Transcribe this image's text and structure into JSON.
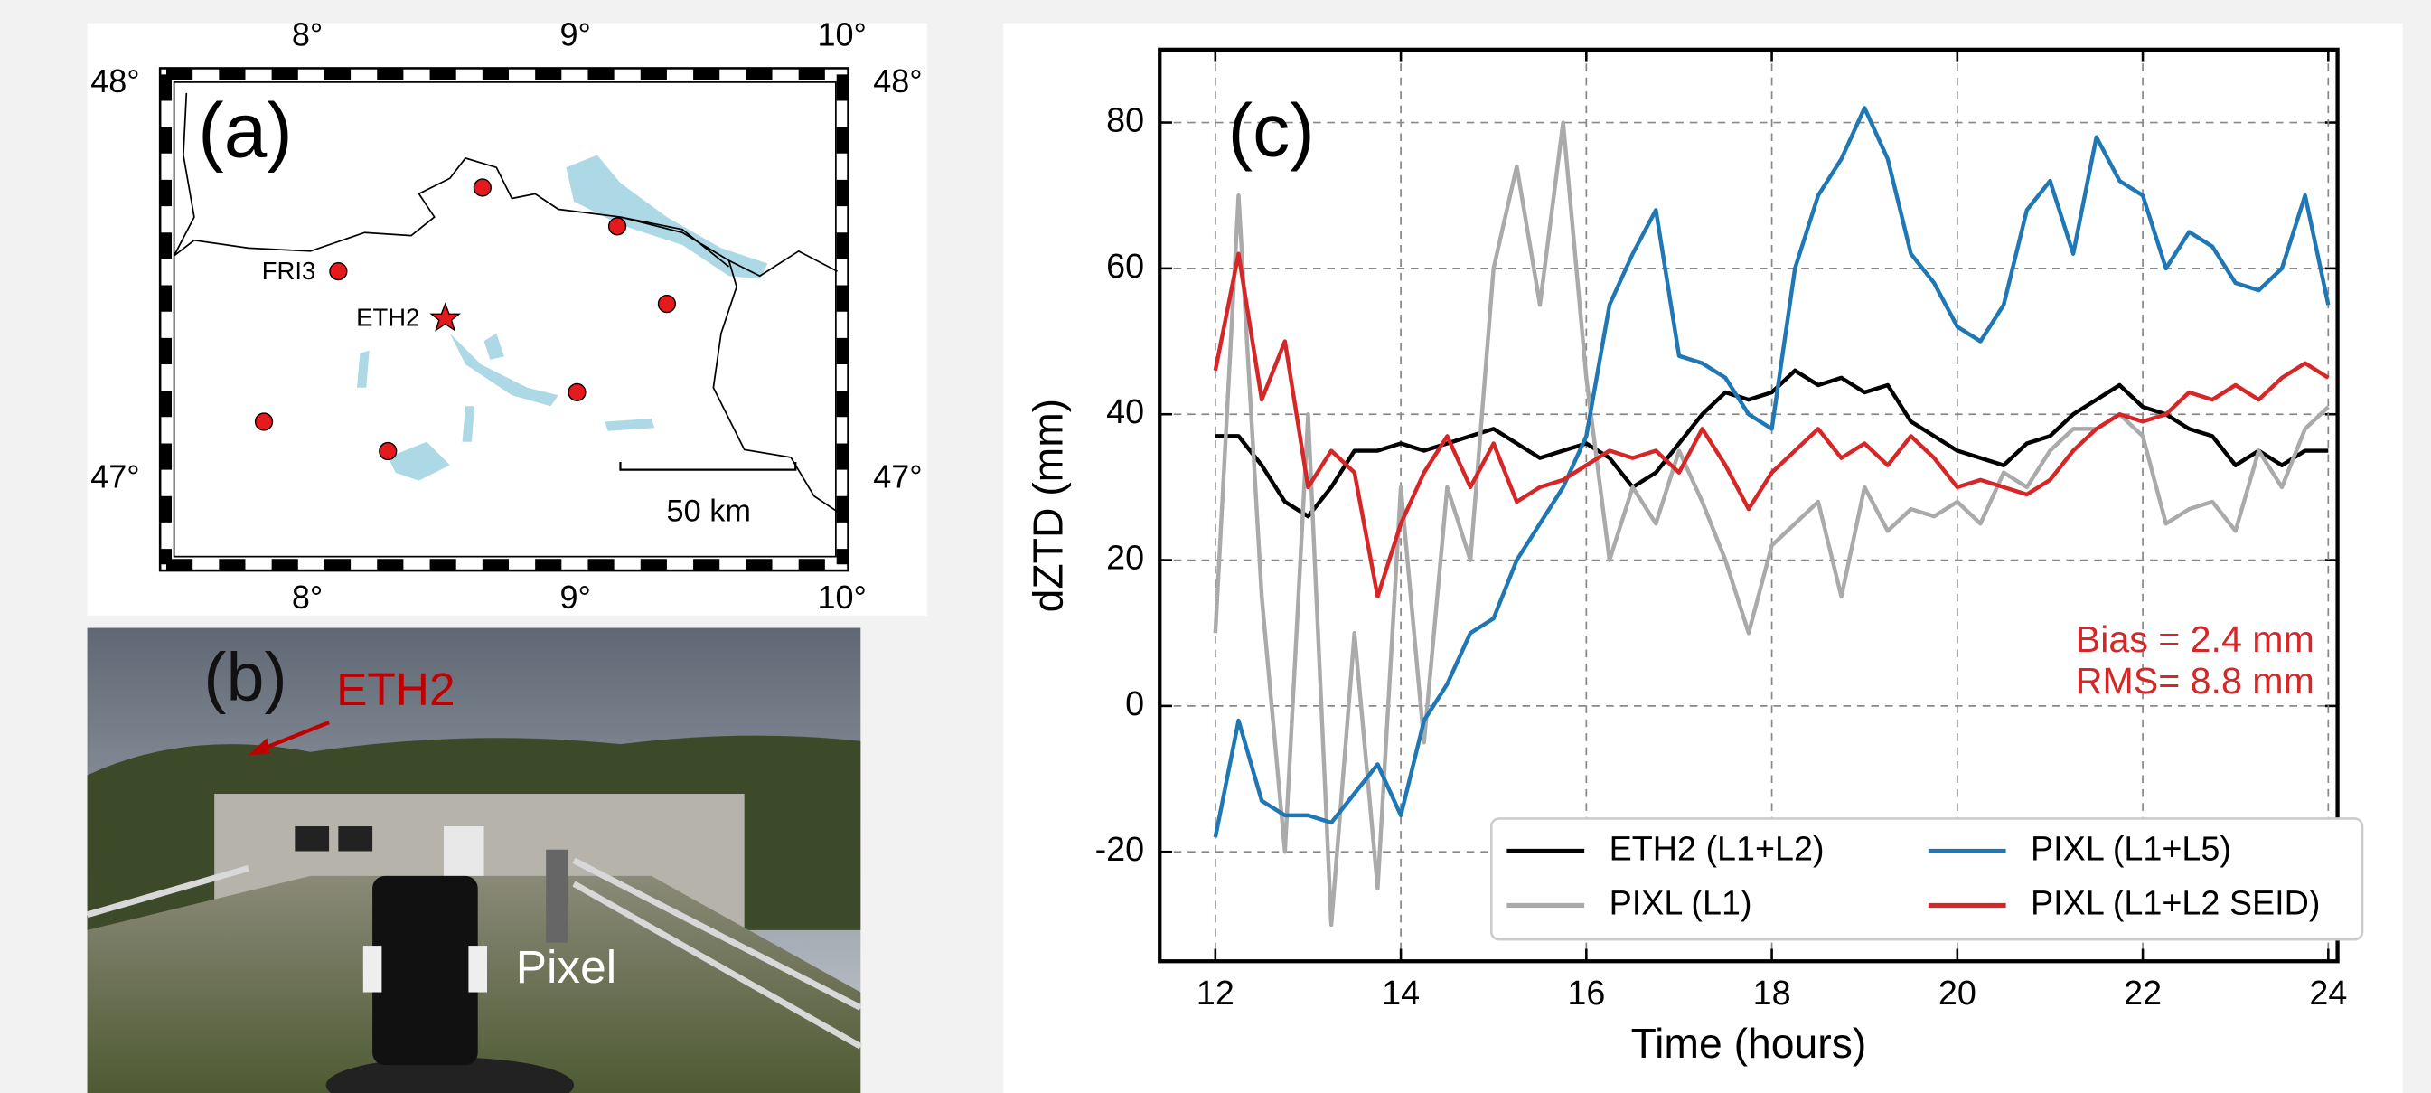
{
  "panel_a": {
    "label": "(a)",
    "lon_labels": [
      "8°",
      "9°",
      "10°"
    ],
    "lat_labels": [
      "48°",
      "47°"
    ],
    "stations": [
      "FRI3",
      "ETH2"
    ],
    "scale": "50 km"
  },
  "panel_b": {
    "label": "(b)",
    "eth2": "ETH2",
    "pixel": "Pixel"
  },
  "chart_data": {
    "type": "line",
    "label": "(c)",
    "xlabel": "Time (hours)",
    "ylabel": "dZTD (mm)",
    "annotations": [
      "Bias = 2.4 mm",
      "RMS= 8.8 mm"
    ],
    "annotation_color": "#d62728",
    "xlim": [
      11.4,
      24.1
    ],
    "ylim": [
      -35,
      90
    ],
    "xticks": [
      12,
      14,
      16,
      18,
      20,
      22,
      24
    ],
    "yticks": [
      -20,
      0,
      20,
      40,
      60,
      80
    ],
    "grid": true,
    "x": [
      12,
      12.25,
      12.5,
      12.75,
      13,
      13.25,
      13.5,
      13.75,
      14,
      14.25,
      14.5,
      14.75,
      15,
      15.25,
      15.5,
      15.75,
      16,
      16.25,
      16.5,
      16.75,
      17,
      17.25,
      17.5,
      17.75,
      18,
      18.25,
      18.5,
      18.75,
      19,
      19.25,
      19.5,
      19.75,
      20,
      20.25,
      20.5,
      20.75,
      21,
      21.25,
      21.5,
      21.75,
      22,
      22.25,
      22.5,
      22.75,
      23,
      23.25,
      23.5,
      23.75,
      24
    ],
    "series": [
      {
        "name": "ETH2 (L1+L2)",
        "color": "#000000",
        "values": [
          37,
          37,
          33,
          28,
          26,
          30,
          35,
          35,
          36,
          35,
          36,
          37,
          38,
          36,
          34,
          35,
          36,
          34,
          30,
          32,
          36,
          40,
          43,
          42,
          43,
          46,
          44,
          45,
          43,
          44,
          39,
          37,
          35,
          34,
          33,
          36,
          37,
          40,
          42,
          44,
          41,
          40,
          38,
          37,
          33,
          35,
          33,
          35,
          35
        ]
      },
      {
        "name": "PIXL (L1)",
        "color": "#aaaaaa",
        "values": [
          10,
          70,
          15,
          -20,
          40,
          -30,
          10,
          -25,
          30,
          -5,
          30,
          20,
          60,
          74,
          55,
          80,
          45,
          20,
          30,
          25,
          35,
          28,
          20,
          10,
          22,
          25,
          28,
          15,
          30,
          24,
          27,
          26,
          28,
          25,
          32,
          30,
          35,
          38,
          38,
          40,
          37,
          25,
          27,
          28,
          24,
          35,
          30,
          38,
          41
        ]
      },
      {
        "name": "PIXL (L1+L5)",
        "color": "#1f77b4",
        "values": [
          -18,
          -2,
          -13,
          -15,
          -15,
          -16,
          -12,
          -8,
          -15,
          -2,
          3,
          10,
          12,
          20,
          25,
          30,
          37,
          55,
          62,
          68,
          48,
          47,
          45,
          40,
          38,
          60,
          70,
          75,
          82,
          75,
          62,
          58,
          52,
          50,
          55,
          68,
          72,
          62,
          78,
          72,
          70,
          60,
          65,
          63,
          58,
          57,
          60,
          70,
          55
        ]
      },
      {
        "name": "PIXL (L1+L2 SEID)",
        "color": "#d62728",
        "values": [
          46,
          62,
          42,
          50,
          30,
          35,
          32,
          15,
          25,
          32,
          37,
          30,
          36,
          28,
          30,
          31,
          33,
          35,
          34,
          35,
          32,
          38,
          33,
          27,
          32,
          35,
          38,
          34,
          36,
          33,
          37,
          34,
          30,
          31,
          30,
          29,
          31,
          35,
          38,
          40,
          39,
          40,
          43,
          42,
          44,
          42,
          45,
          47,
          45
        ]
      }
    ]
  }
}
